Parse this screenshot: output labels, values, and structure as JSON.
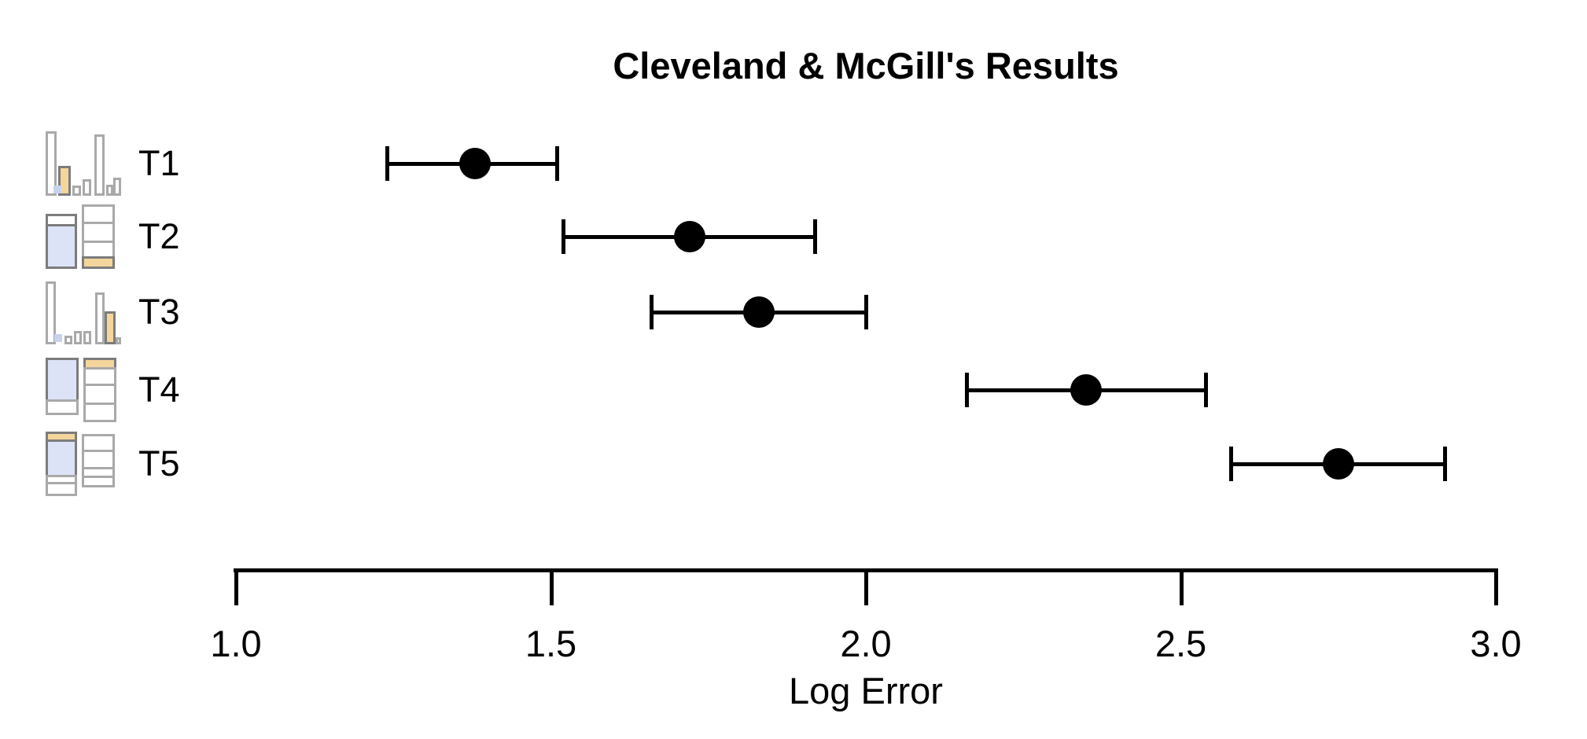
{
  "chart_data": {
    "type": "scatter",
    "variant": "dot-plot-with-horizontal-error-bars",
    "title": "Cleveland & McGill's Results",
    "xlabel": "Log Error",
    "ylabel": "",
    "xlim": [
      1.0,
      3.0
    ],
    "xtick_values": [
      1.0,
      1.5,
      2.0,
      2.5,
      3.0
    ],
    "xtick_labels": [
      "1.0",
      "1.5",
      "2.0",
      "2.5",
      "3.0"
    ],
    "grid": false,
    "legend": "none",
    "point_color": "#000000",
    "categories": [
      "T1",
      "T2",
      "T3",
      "T4",
      "T5"
    ],
    "series": [
      {
        "task": "T1",
        "mean": 1.38,
        "ci_lo": 1.24,
        "ci_hi": 1.51,
        "icon": "grouped-bar-chart-adjacent-marks-icon"
      },
      {
        "task": "T2",
        "mean": 1.72,
        "ci_lo": 1.52,
        "ci_hi": 1.92,
        "icon": "stacked-bar-chart-aligned-marks-icon"
      },
      {
        "task": "T3",
        "mean": 1.83,
        "ci_lo": 1.66,
        "ci_hi": 2.0,
        "icon": "grouped-bar-chart-separated-marks-icon"
      },
      {
        "task": "T4",
        "mean": 2.35,
        "ci_lo": 2.16,
        "ci_hi": 2.54,
        "icon": "stacked-bar-chart-unaligned-marks-icon"
      },
      {
        "task": "T5",
        "mean": 2.75,
        "ci_lo": 2.58,
        "ci_hi": 2.92,
        "icon": "stacked-bar-chart-unaligned-marks-icon"
      }
    ],
    "icon_colors": {
      "outline_light": "#a9a9a9",
      "outline_dark": "#7c7c7c",
      "marked_fill_orange": "#f4d59c",
      "marked_fill_blue": "#dde3f7",
      "marker_dot_blue": "#c7d2ef"
    }
  }
}
